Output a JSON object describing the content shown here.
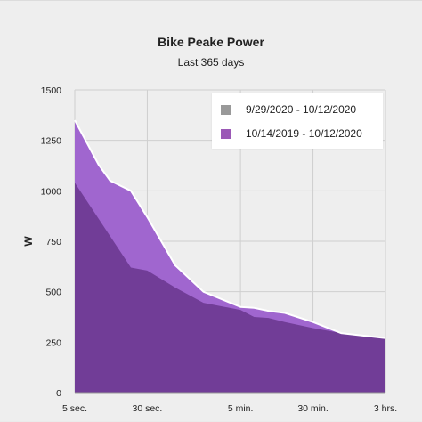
{
  "header": {
    "title": "Bike Peake Power",
    "subtitle": "Last 365 days"
  },
  "chart_data": {
    "type": "area",
    "title": "Bike Peake Power",
    "subtitle": "Last 365 days",
    "ylabel": "W",
    "xlabel": "",
    "x_scale": "log",
    "ylim": [
      0,
      1500
    ],
    "y_ticks": [
      0,
      250,
      500,
      750,
      1000,
      1250,
      1500
    ],
    "x_tick_labels": [
      {
        "label": "5 sec.",
        "seconds": 5
      },
      {
        "label": "30 sec.",
        "seconds": 30
      },
      {
        "label": "5 min.",
        "seconds": 300
      },
      {
        "label": "30 min.",
        "seconds": 1800
      },
      {
        "label": "3 hrs.",
        "seconds": 10800
      }
    ],
    "grid": true,
    "legend_position": "top-right",
    "series": [
      {
        "name": "10/14/2019 - 10/12/2020",
        "color": "#a066cf",
        "x_seconds": [
          5,
          9,
          12,
          20,
          30,
          60,
          120,
          300,
          420,
          600,
          900,
          1800,
          3600,
          10800
        ],
        "values": [
          1350,
          1130,
          1050,
          1000,
          870,
          630,
          500,
          425,
          420,
          405,
          395,
          350,
          295,
          270
        ]
      },
      {
        "name": "9/29/2020 - 10/12/2020",
        "color": "#999999",
        "x_seconds": [
          5,
          10,
          20,
          30,
          60,
          120,
          300,
          420,
          600,
          900,
          1800,
          3600,
          10800
        ],
        "values": [
          1040,
          830,
          620,
          605,
          520,
          445,
          410,
          375,
          370,
          350,
          320,
          295,
          270
        ]
      }
    ]
  },
  "legend": {
    "items": [
      {
        "label": "9/29/2020 - 10/12/2020",
        "color": "#999999"
      },
      {
        "label": "10/14/2019 - 10/12/2020",
        "color": "#9b59b6"
      }
    ]
  }
}
